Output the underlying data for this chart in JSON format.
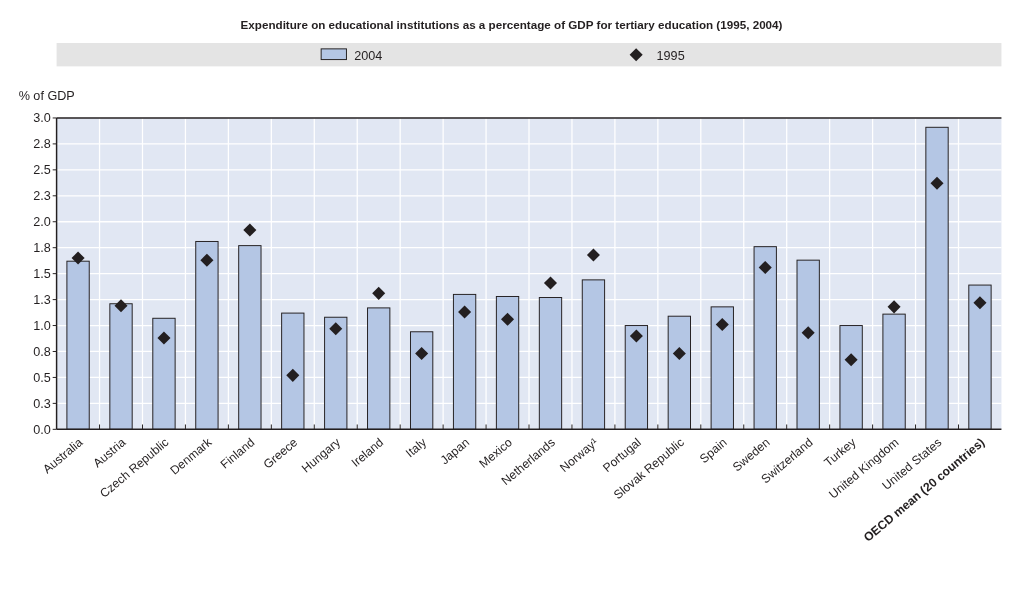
{
  "chart_data": {
    "type": "bar",
    "title": "Expenditure on educational institutions as a percentage of GDP for tertiary education (1995, 2004)",
    "ylabel": "% of GDP",
    "categories": [
      "Australia",
      "Austria",
      "Czech Republic",
      "Denmark",
      "Finland",
      "Greece",
      "Hungary",
      "Ireland",
      "Italy",
      "Japan",
      "Mexico",
      "Netherlands",
      "Norway¹",
      "Portugal",
      "Slovak Republic",
      "Spain",
      "Sweden",
      "Switzerland",
      "Turkey",
      "United Kingdom",
      "United States",
      "OECD mean (20 countries)"
    ],
    "series": [
      {
        "name": "2004",
        "color": "#b4c6e4",
        "values": [
          1.62,
          1.21,
          1.07,
          1.81,
          1.77,
          1.12,
          1.08,
          1.17,
          0.94,
          1.3,
          1.28,
          1.27,
          1.44,
          1.0,
          1.09,
          1.18,
          1.76,
          1.63,
          1.0,
          1.11,
          2.91,
          1.39
        ]
      },
      {
        "name": "1995",
        "type": "scatter",
        "color": "#231f20",
        "values": [
          1.65,
          1.19,
          0.88,
          1.63,
          1.92,
          0.52,
          0.97,
          1.31,
          0.73,
          1.13,
          1.06,
          1.41,
          1.68,
          0.9,
          0.73,
          1.01,
          1.56,
          0.93,
          0.67,
          1.18,
          2.37,
          1.22
        ]
      }
    ],
    "ylim": [
      0,
      3
    ],
    "yticks": [
      {
        "value": 0,
        "label": "0.0"
      },
      {
        "value": 0.25,
        "label": "0.3"
      },
      0.5,
      {
        "value": 0.75,
        "label": "0.8"
      },
      {
        "value": 1,
        "label": "1.0"
      },
      {
        "value": 1.25,
        "label": "1.3"
      },
      1.5,
      {
        "value": 1.75,
        "label": "1.8"
      },
      {
        "value": 2,
        "label": "2.0"
      },
      {
        "value": 2.25,
        "label": "2.3"
      },
      2.5,
      {
        "value": 2.75,
        "label": "2.8"
      },
      {
        "value": 3,
        "label": "3.0"
      }
    ],
    "grid": true,
    "legend": "top",
    "marker": "diamond"
  }
}
